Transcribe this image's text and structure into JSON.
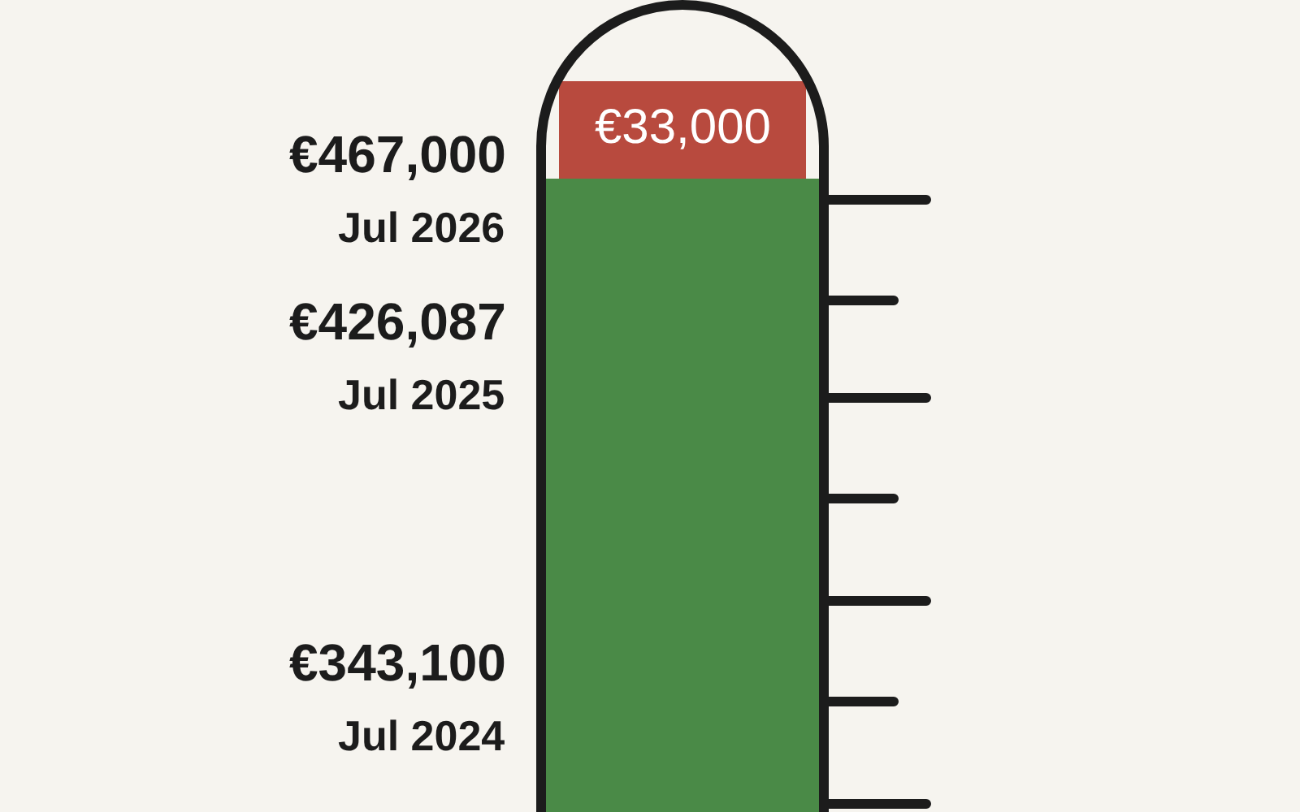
{
  "chart_data": {
    "type": "other",
    "categories": [
      "Jul 2024",
      "Jul 2025",
      "Jul 2026"
    ],
    "values": [
      343100,
      426087,
      467000
    ],
    "value_labels": [
      "€343,100",
      "€426,087",
      "€467,000"
    ],
    "color": "#4a8a47",
    "annotations": [
      "€33,000"
    ]
  }
}
